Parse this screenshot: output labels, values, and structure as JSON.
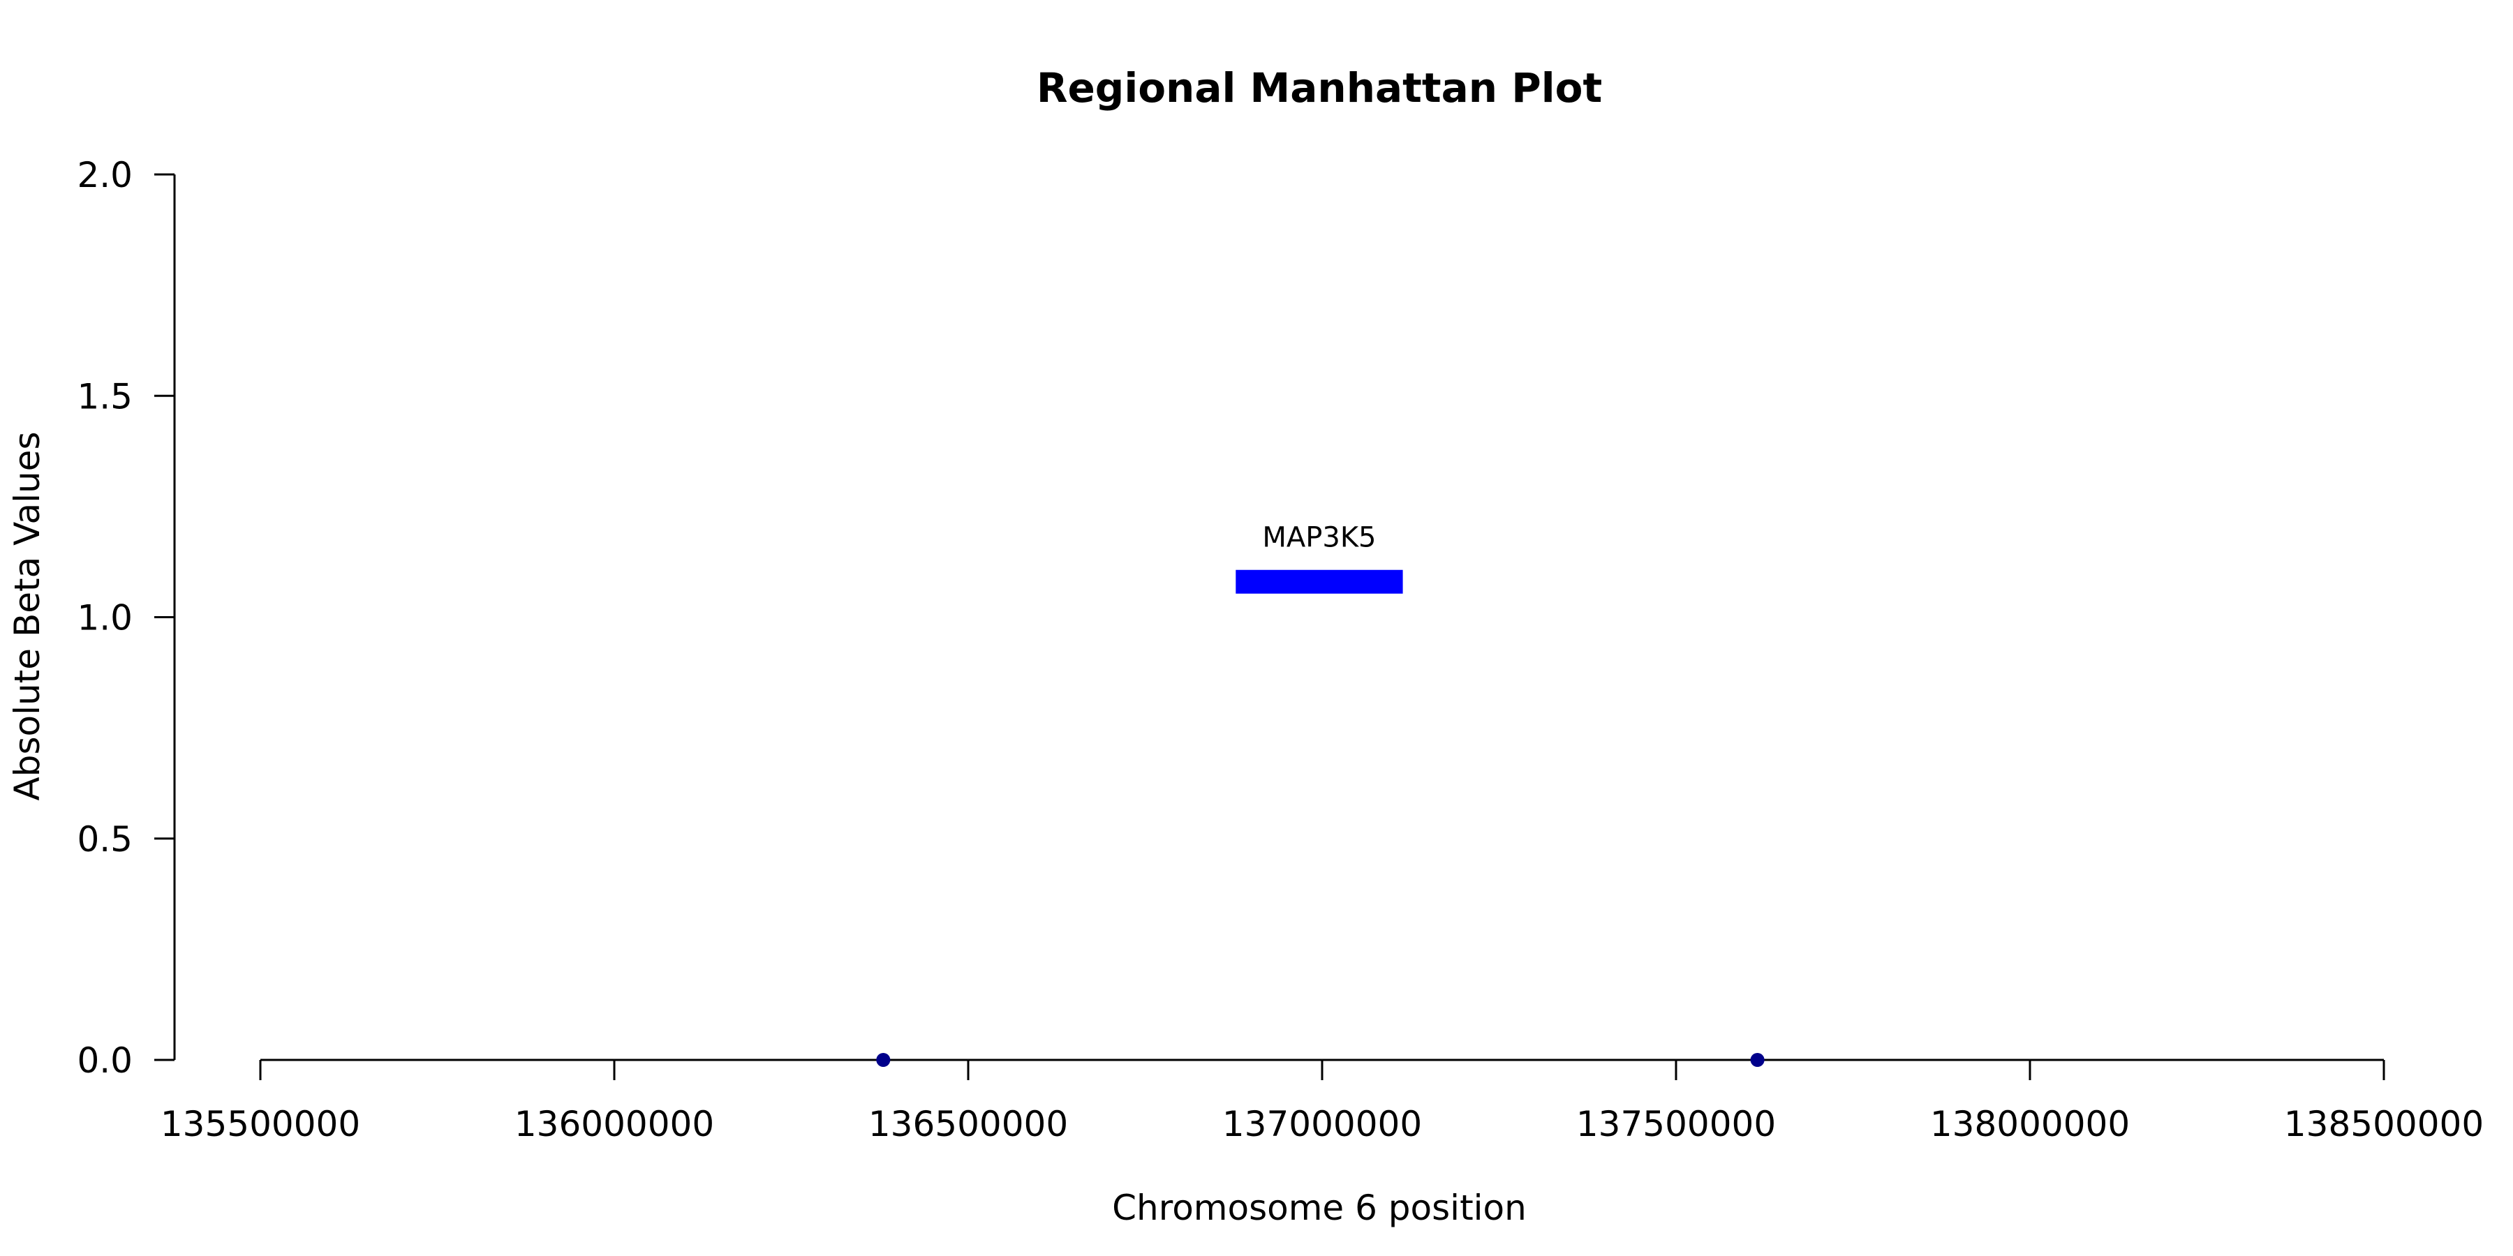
{
  "chart_data": {
    "type": "scatter",
    "title": "Regional Manhattan Plot",
    "xlabel": "Chromosome 6 position",
    "ylabel": "Absolute Beta Values",
    "xlim": [
      135500000,
      138500000
    ],
    "ylim": [
      0,
      2
    ],
    "x_ticks": [
      135500000,
      136000000,
      136500000,
      137000000,
      137500000,
      138000000,
      138500000
    ],
    "y_ticks": [
      0.0,
      0.5,
      1.0,
      1.5,
      2.0
    ],
    "x_tick_labels": [
      "135500000",
      "136000000",
      "136500000",
      "137000000",
      "137500000",
      "138000000",
      "138500000"
    ],
    "y_tick_labels": [
      "0.0",
      "0.5",
      "1.0",
      "1.5",
      "2.0"
    ],
    "grid": false,
    "series": [
      {
        "points": [
          {
            "x": 136380000,
            "y": 0.0
          },
          {
            "x": 137615000,
            "y": 0.0
          }
        ],
        "color": "#00008b"
      }
    ],
    "genes": [
      {
        "name": "MAP3K5",
        "start": 136878000,
        "end": 137114000,
        "y": 1.08,
        "color": "#0000ff"
      }
    ]
  }
}
